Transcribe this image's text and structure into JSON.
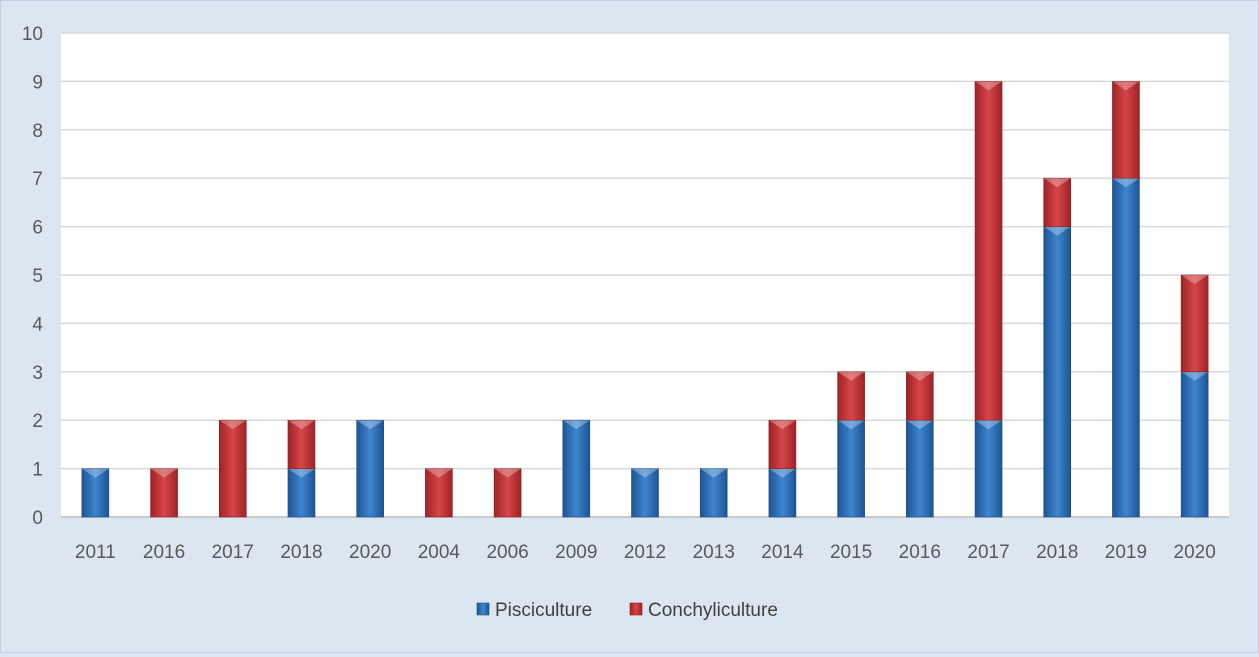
{
  "chart_data": {
    "type": "bar",
    "stacked": true,
    "categories": [
      "2011",
      "2016",
      "2017",
      "2018",
      "2020",
      "2004",
      "2006",
      "2009",
      "2012",
      "2013",
      "2014",
      "2015",
      "2016",
      "2017",
      "2018",
      "2019",
      "2020"
    ],
    "series": [
      {
        "name": "Pisciculture",
        "color": "#2e75b6",
        "values": [
          1,
          0,
          0,
          1,
          2,
          0,
          0,
          2,
          1,
          1,
          1,
          2,
          2,
          2,
          6,
          7,
          3
        ]
      },
      {
        "name": "Conchyliculture",
        "color": "#c0393b",
        "values": [
          0,
          1,
          2,
          1,
          0,
          1,
          1,
          0,
          0,
          0,
          1,
          1,
          1,
          7,
          1,
          2,
          2
        ]
      }
    ],
    "ylim": [
      0,
      10
    ],
    "yticks": [
      "0",
      "1",
      "2",
      "3",
      "4",
      "5",
      "6",
      "7",
      "8",
      "9",
      "10"
    ],
    "grid": true,
    "legend_position": "bottom",
    "title": "",
    "xlabel": "",
    "ylabel": ""
  }
}
